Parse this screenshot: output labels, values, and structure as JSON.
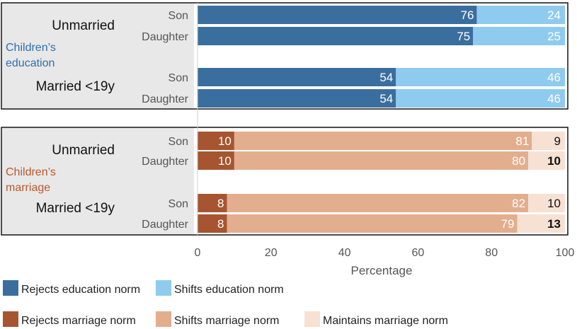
{
  "colors": {
    "rejects_edu": "#3A6E9E",
    "shifts_edu": "#8FCBEF",
    "rejects_mar": "#A65530",
    "shifts_mar": "#E3AE8E",
    "maintains_mar": "#F7E1D3",
    "panel_bg": "#E8E8E8",
    "edu_label": "#2E6EB0",
    "mar_label": "#B85A2A",
    "text": "#111111",
    "sub_text": "#555555",
    "axis_text": "#555555"
  },
  "chart_data": {
    "type": "bar",
    "orientation": "horizontal",
    "stacked": true,
    "xlabel": "Percentage",
    "xlim": [
      0,
      100
    ],
    "xticks": [
      "0",
      "20",
      "40",
      "60",
      "80",
      "100"
    ],
    "panels": [
      {
        "title": "Children’s education",
        "title_lines": [
          "Children’s",
          "education"
        ],
        "groups": [
          {
            "label": "Unmarried",
            "rows": [
              {
                "label": "Son",
                "values": [
                  76,
                  24
                ]
              },
              {
                "label": "Daughter",
                "values": [
                  75,
                  25
                ]
              }
            ]
          },
          {
            "label": "Married <19y",
            "rows": [
              {
                "label": "Son",
                "values": [
                  54,
                  46
                ]
              },
              {
                "label": "Daughter",
                "values": [
                  54,
                  46
                ]
              }
            ]
          }
        ],
        "series": [
          "Rejects education norm",
          "Shifts education norm"
        ]
      },
      {
        "title": "Children’s marriage",
        "title_lines": [
          "Children’s",
          "marriage"
        ],
        "groups": [
          {
            "label": "Unmarried",
            "rows": [
              {
                "label": "Son",
                "values": [
                  10,
                  81,
                  9
                ]
              },
              {
                "label": "Daughter",
                "values": [
                  10,
                  80,
                  10
                ]
              }
            ]
          },
          {
            "label": "Married <19y",
            "rows": [
              {
                "label": "Son",
                "values": [
                  8,
                  82,
                  10
                ]
              },
              {
                "label": "Daughter",
                "values": [
                  8,
                  79,
                  13
                ]
              }
            ]
          }
        ],
        "series": [
          "Rejects marriage norm",
          "Shifts marriage norm",
          "Maintains marriage norm"
        ]
      }
    ],
    "legend": [
      {
        "label": "Rejects education norm"
      },
      {
        "label": "Shifts education norm"
      },
      {
        "label": "Rejects marriage norm"
      },
      {
        "label": "Shifts marriage norm"
      },
      {
        "label": "Maintains marriage norm"
      }
    ]
  }
}
